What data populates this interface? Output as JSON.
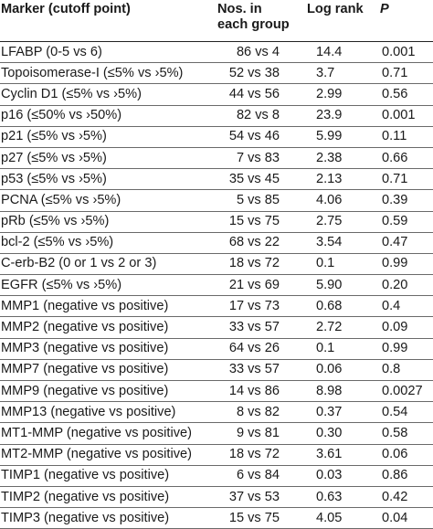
{
  "table": {
    "headers": {
      "marker": "Marker (cutoff point)",
      "nos": "Nos. in\neach group",
      "logrank": "Log rank",
      "p": "P"
    },
    "rows": [
      {
        "marker": "LFABP (0-5 vs 6)",
        "nos": "86 vs 4",
        "logrank": "14.4",
        "p": "0.001"
      },
      {
        "marker": "Topoisomerase-I (≤5% vs ›5%)",
        "nos": "52 vs 38",
        "logrank": "3.7",
        "p": "0.71"
      },
      {
        "marker": "Cyclin D1 (≤5% vs ›5%)",
        "nos": "44 vs 56",
        "logrank": "2.99",
        "p": "0.56"
      },
      {
        "marker": "p16 (≤50% vs ›50%)",
        "nos": "82 vs 8",
        "logrank": "23.9",
        "p": "0.001"
      },
      {
        "marker": "p21 (≤5% vs ›5%)",
        "nos": "54 vs 46",
        "logrank": "5.99",
        "p": "0.11"
      },
      {
        "marker": "p27 (≤5% vs ›5%)",
        "nos": "7 vs 83",
        "logrank": "2.38",
        "p": "0.66"
      },
      {
        "marker": "p53 (≤5% vs ›5%)",
        "nos": "35 vs 45",
        "logrank": "2.13",
        "p": "0.71"
      },
      {
        "marker": "PCNA (≤5% vs ›5%)",
        "nos": "5 vs 85",
        "logrank": "4.06",
        "p": "0.39"
      },
      {
        "marker": "pRb (≤5% vs ›5%)",
        "nos": "15 vs 75",
        "logrank": "2.75",
        "p": "0.59"
      },
      {
        "marker": "bcl-2 (≤5% vs ›5%)",
        "nos": "68 vs 22",
        "logrank": "3.54",
        "p": "0.47"
      },
      {
        "marker": "C-erb-B2 (0 or 1 vs 2 or 3)",
        "nos": "18 vs 72",
        "logrank": "0.1",
        "p": "0.99"
      },
      {
        "marker": "EGFR (≤5% vs ›5%)",
        "nos": "21 vs 69",
        "logrank": "5.90",
        "p": "0.20"
      },
      {
        "marker": "MMP1 (negative vs positive)",
        "nos": "17 vs 73",
        "logrank": "0.68",
        "p": "0.4"
      },
      {
        "marker": "MMP2 (negative vs positive)",
        "nos": "33 vs 57",
        "logrank": "2.72",
        "p": "0.09"
      },
      {
        "marker": "MMP3 (negative vs positive)",
        "nos": "64 vs 26",
        "logrank": "0.1",
        "p": "0.99"
      },
      {
        "marker": "MMP7 (negative vs positive)",
        "nos": "33 vs 57",
        "logrank": "0.06",
        "p": "0.8"
      },
      {
        "marker": "MMP9 (negative vs positive)",
        "nos": "14 vs 86",
        "logrank": "8.98",
        "p": "0.0027"
      },
      {
        "marker": "MMP13 (negative vs positive)",
        "nos": "8 vs 82",
        "logrank": "0.37",
        "p": "0.54"
      },
      {
        "marker": "MT1-MMP (negative vs positive)",
        "nos": "9 vs 81",
        "logrank": "0.30",
        "p": "0.58"
      },
      {
        "marker": "MT2-MMP (negative vs positive)",
        "nos": "18 vs 72",
        "logrank": "3.61",
        "p": "0.06"
      },
      {
        "marker": "TIMP1 (negative vs positive)",
        "nos": "6 vs 84",
        "logrank": "0.03",
        "p": "0.86"
      },
      {
        "marker": "TIMP2 (negative vs positive)",
        "nos": "37 vs 53",
        "logrank": "0.63",
        "p": "0.42"
      },
      {
        "marker": "TIMP3 (negative vs positive)",
        "nos": "15 vs 75",
        "logrank": "4.05",
        "p": "0.04"
      }
    ]
  }
}
